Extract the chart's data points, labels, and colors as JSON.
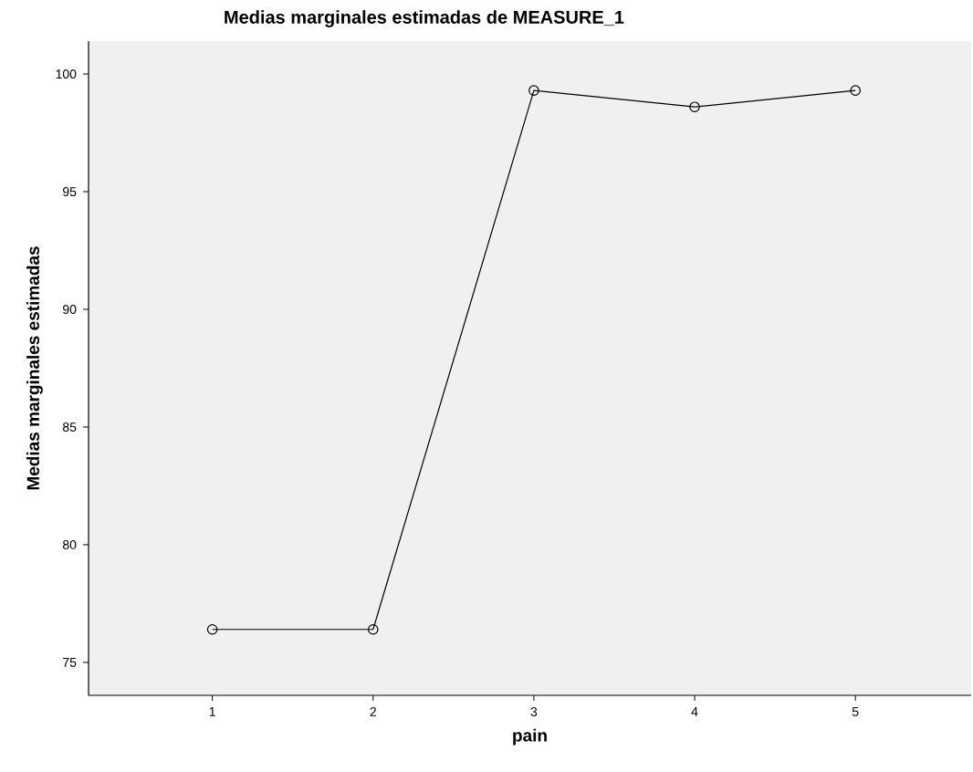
{
  "chart_data": {
    "type": "line",
    "title": "Medias marginales estimadas de MEASURE_1",
    "xlabel": "pain",
    "ylabel": "Medias marginales estimadas",
    "categories": [
      "1",
      "2",
      "3",
      "4",
      "5"
    ],
    "series": [
      {
        "color": "#000000",
        "values": [
          76.4,
          76.4,
          99.3,
          98.6,
          99.3
        ]
      }
    ],
    "ylim": [
      73.6,
      101.4
    ],
    "yticks": [
      75,
      80,
      85,
      90,
      95,
      100
    ],
    "grid": false,
    "marker": "circle",
    "line_style": "solid"
  }
}
